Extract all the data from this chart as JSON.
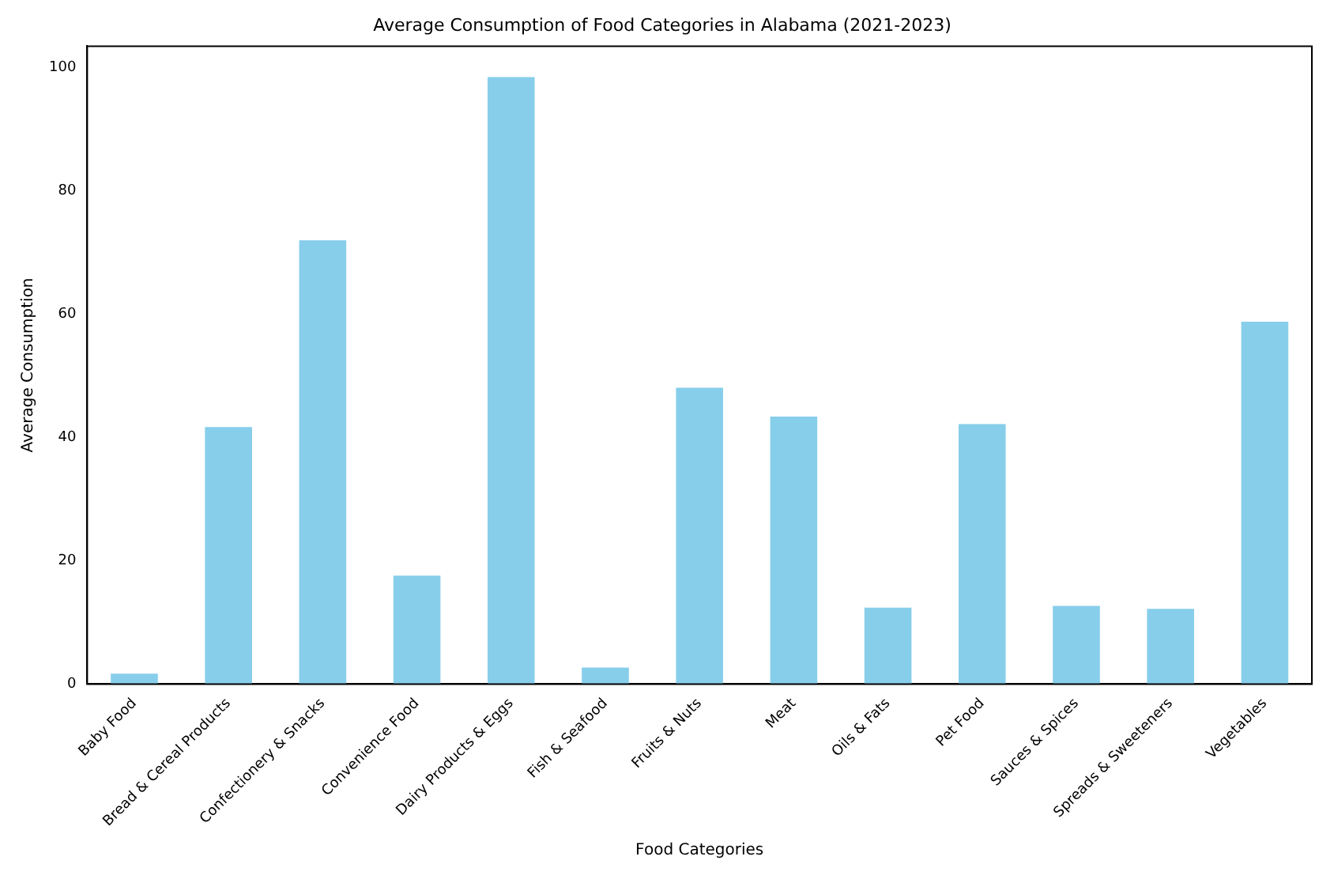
{
  "chart_data": {
    "type": "bar",
    "title": "Average Consumption of Food Categories in Alabama (2021-2023)",
    "xlabel": "Food Categories",
    "ylabel": "Average Consumption",
    "categories": [
      "Baby Food",
      "Bread & Cereal Products",
      "Confectionery & Snacks",
      "Convenience Food",
      "Dairy Products & Eggs",
      "Fish & Seafood",
      "Fruits & Nuts",
      "Meat",
      "Oils & Fats",
      "Pet Food",
      "Sauces & Spices",
      "Spreads & Sweeteners",
      "Vegetables"
    ],
    "values": [
      1.7,
      41.7,
      72,
      17.6,
      98.5,
      2.7,
      48.1,
      43.4,
      12.4,
      42.2,
      12.7,
      12.2,
      58.8
    ],
    "color": "#87ceeb",
    "ylim": [
      0,
      103.5
    ],
    "yticks": [
      0,
      20,
      40,
      60,
      80,
      100
    ],
    "grid": false,
    "legend": false
  }
}
